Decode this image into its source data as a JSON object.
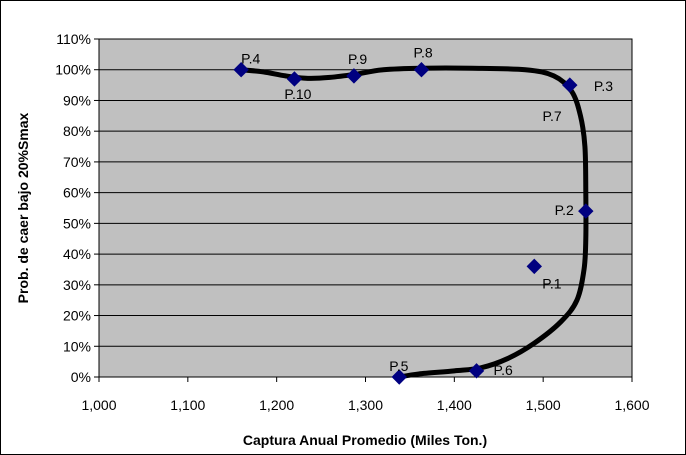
{
  "chart_data": {
    "type": "scatter",
    "xlabel": "Captura Anual Promedio (Miles Ton.)",
    "ylabel": "Prob. de caer bajo 20%Smax",
    "xlim": [
      1000,
      1600
    ],
    "ylim": [
      0,
      110
    ],
    "x_ticks": [
      1000,
      1100,
      1200,
      1300,
      1400,
      1500,
      1600
    ],
    "x_tick_labels": [
      "1,000",
      "1,100",
      "1,200",
      "1,300",
      "1,400",
      "1,500",
      "1,600"
    ],
    "y_ticks": [
      0,
      10,
      20,
      30,
      40,
      50,
      60,
      70,
      80,
      90,
      100,
      110
    ],
    "y_tick_labels": [
      "0%",
      "10%",
      "20%",
      "30%",
      "40%",
      "50%",
      "60%",
      "70%",
      "80%",
      "90%",
      "100%",
      "110%"
    ],
    "grid": "horizontal",
    "colors": {
      "plot_background": "#c0c0c0",
      "marker": "#000080",
      "curve": "#000000",
      "gridline": "#000000"
    },
    "points": [
      {
        "label": "P.1",
        "x": 1490,
        "y": 36
      },
      {
        "label": "P.2",
        "x": 1548,
        "y": 54
      },
      {
        "label": "P.3",
        "x": 1530,
        "y": 95
      },
      {
        "label": "P.4",
        "x": 1160,
        "y": 100
      },
      {
        "label": "P.5",
        "x": 1338,
        "y": 0
      },
      {
        "label": "P.6",
        "x": 1425,
        "y": 2
      },
      {
        "label": "P.8",
        "x": 1363,
        "y": 100
      },
      {
        "label": "P.9",
        "x": 1287,
        "y": 98
      },
      {
        "label": "P.10",
        "x": 1220,
        "y": 97
      }
    ],
    "annotations": [
      {
        "text": "P.7",
        "x": 1510,
        "y": 85
      }
    ],
    "curve": [
      [
        1338,
        0
      ],
      [
        1360,
        1
      ],
      [
        1400,
        2
      ],
      [
        1430,
        3
      ],
      [
        1460,
        6
      ],
      [
        1490,
        11
      ],
      [
        1520,
        18
      ],
      [
        1538,
        25
      ],
      [
        1546,
        35
      ],
      [
        1548,
        45
      ],
      [
        1548,
        60
      ],
      [
        1547,
        75
      ],
      [
        1542,
        85
      ],
      [
        1532,
        93
      ],
      [
        1512,
        98
      ],
      [
        1480,
        100
      ],
      [
        1420,
        100.5
      ],
      [
        1363,
        100.5
      ],
      [
        1320,
        100
      ],
      [
        1288,
        98.5
      ],
      [
        1260,
        97.5
      ],
      [
        1235,
        97.2
      ],
      [
        1210,
        98
      ],
      [
        1185,
        99.3
      ],
      [
        1160,
        100
      ]
    ]
  }
}
